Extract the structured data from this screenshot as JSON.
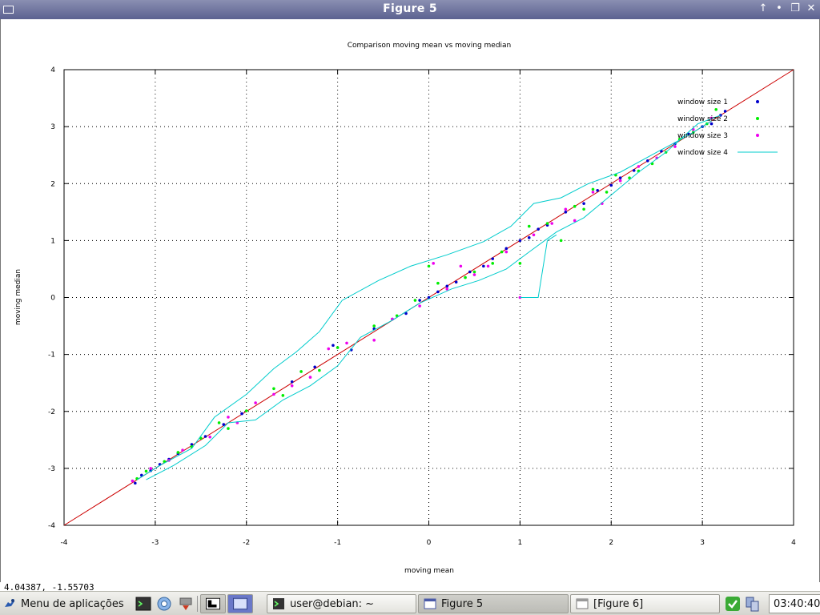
{
  "window": {
    "title": "Figure 5"
  },
  "status": {
    "coords": "4.04387, -1.55703"
  },
  "taskbar": {
    "menu_label": "Menu de aplicações",
    "tasks": [
      {
        "label": "user@debian: ~"
      },
      {
        "label": "Figure 5"
      },
      {
        "label": "[Figure 6]"
      }
    ],
    "clock": "03:40:40"
  },
  "colors": {
    "ws1": "#0000cc",
    "ws2": "#00ee00",
    "ws3": "#ee00ee",
    "ws4": "#00cccc",
    "identity": "#cc0000"
  },
  "chart_data": {
    "type": "scatter",
    "title": "Comparison moving mean vs moving median",
    "xlabel": "moving mean",
    "ylabel": "moving median",
    "xlim": [
      -4,
      4
    ],
    "ylim": [
      -4,
      4
    ],
    "xticks": [
      "-4",
      "-3",
      "-2",
      "-1",
      "0",
      "1",
      "2",
      "3",
      "4"
    ],
    "yticks": [
      "-4",
      "-3",
      "-2",
      "-1",
      "0",
      "1",
      "2",
      "3",
      "4"
    ],
    "grid": true,
    "legend_position": "top-right",
    "identity_line": {
      "from": [
        -4,
        -4
      ],
      "to": [
        4,
        4
      ]
    },
    "series": [
      {
        "name": "window size 1",
        "style": "points",
        "points": [
          [
            -3.22,
            -3.26
          ],
          [
            -3.15,
            -3.12
          ],
          [
            -3.05,
            -3.04
          ],
          [
            -2.95,
            -2.93
          ],
          [
            -2.85,
            -2.84
          ],
          [
            -2.75,
            -2.74
          ],
          [
            -2.6,
            -2.58
          ],
          [
            -2.45,
            -2.44
          ],
          [
            -2.25,
            -2.23
          ],
          [
            -2.05,
            -2.04
          ],
          [
            -1.5,
            -1.48
          ],
          [
            -1.25,
            -1.22
          ],
          [
            -1.05,
            -0.84
          ],
          [
            -0.85,
            -0.92
          ],
          [
            -0.6,
            -0.55
          ],
          [
            -0.4,
            -0.38
          ],
          [
            -0.25,
            -0.28
          ],
          [
            -0.1,
            -0.05
          ],
          [
            0.0,
            0.0
          ],
          [
            0.1,
            0.1
          ],
          [
            0.2,
            0.2
          ],
          [
            0.3,
            0.27
          ],
          [
            0.45,
            0.45
          ],
          [
            0.6,
            0.55
          ],
          [
            0.7,
            0.68
          ],
          [
            0.85,
            0.86
          ],
          [
            1.0,
            1.0
          ],
          [
            1.1,
            1.05
          ],
          [
            1.2,
            1.2
          ],
          [
            1.3,
            1.27
          ],
          [
            1.5,
            1.5
          ],
          [
            1.7,
            1.65
          ],
          [
            1.85,
            1.88
          ],
          [
            2.0,
            1.97
          ],
          [
            2.1,
            2.1
          ],
          [
            2.25,
            2.23
          ],
          [
            2.4,
            2.4
          ],
          [
            2.55,
            2.57
          ],
          [
            2.7,
            2.7
          ],
          [
            2.85,
            2.87
          ],
          [
            3.0,
            3.0
          ],
          [
            3.1,
            3.05
          ],
          [
            3.2,
            3.2
          ],
          [
            3.25,
            3.27
          ]
        ]
      },
      {
        "name": "window size 2",
        "style": "points",
        "points": [
          [
            -3.2,
            -3.18
          ],
          [
            -3.1,
            -3.05
          ],
          [
            -2.9,
            -2.88
          ],
          [
            -2.75,
            -2.72
          ],
          [
            -2.6,
            -2.62
          ],
          [
            -2.5,
            -2.47
          ],
          [
            -2.3,
            -2.2
          ],
          [
            -2.2,
            -2.3
          ],
          [
            -2.0,
            -1.99
          ],
          [
            -1.7,
            -1.6
          ],
          [
            -1.6,
            -1.72
          ],
          [
            -1.4,
            -1.3
          ],
          [
            -1.2,
            -1.28
          ],
          [
            -1.0,
            -0.88
          ],
          [
            -0.6,
            -0.5
          ],
          [
            -0.35,
            -0.32
          ],
          [
            -0.15,
            -0.05
          ],
          [
            0.0,
            0.55
          ],
          [
            0.1,
            0.25
          ],
          [
            0.4,
            0.35
          ],
          [
            0.5,
            0.45
          ],
          [
            0.7,
            0.6
          ],
          [
            0.8,
            0.8
          ],
          [
            1.0,
            0.6
          ],
          [
            1.1,
            1.25
          ],
          [
            1.3,
            1.3
          ],
          [
            1.45,
            1.0
          ],
          [
            1.6,
            1.6
          ],
          [
            1.7,
            1.55
          ],
          [
            1.8,
            1.9
          ],
          [
            1.95,
            1.85
          ],
          [
            2.05,
            2.15
          ],
          [
            2.2,
            2.1
          ],
          [
            2.3,
            2.22
          ],
          [
            2.45,
            2.35
          ],
          [
            2.6,
            2.55
          ],
          [
            2.75,
            2.78
          ],
          [
            2.9,
            2.9
          ],
          [
            3.05,
            3.05
          ],
          [
            3.15,
            3.3
          ]
        ]
      },
      {
        "name": "window size 3",
        "style": "points",
        "points": [
          [
            -3.25,
            -3.22
          ],
          [
            -3.05,
            -3.0
          ],
          [
            -2.85,
            -2.86
          ],
          [
            -2.7,
            -2.68
          ],
          [
            -2.4,
            -2.45
          ],
          [
            -2.2,
            -2.1
          ],
          [
            -2.1,
            -2.2
          ],
          [
            -1.9,
            -1.85
          ],
          [
            -1.7,
            -1.7
          ],
          [
            -1.5,
            -1.55
          ],
          [
            -1.3,
            -1.4
          ],
          [
            -1.1,
            -0.9
          ],
          [
            -0.9,
            -0.8
          ],
          [
            -0.6,
            -0.75
          ],
          [
            -0.4,
            -0.38
          ],
          [
            -0.1,
            -0.15
          ],
          [
            0.05,
            0.6
          ],
          [
            0.2,
            0.15
          ],
          [
            0.35,
            0.55
          ],
          [
            0.5,
            0.4
          ],
          [
            0.65,
            0.55
          ],
          [
            0.85,
            0.8
          ],
          [
            1.0,
            0.0
          ],
          [
            1.15,
            1.1
          ],
          [
            1.35,
            1.3
          ],
          [
            1.5,
            1.55
          ],
          [
            1.6,
            1.35
          ],
          [
            1.8,
            1.85
          ],
          [
            1.9,
            1.65
          ],
          [
            2.1,
            2.05
          ],
          [
            2.3,
            2.3
          ],
          [
            2.5,
            2.45
          ],
          [
            2.7,
            2.65
          ],
          [
            2.9,
            2.95
          ],
          [
            3.1,
            3.15
          ]
        ]
      },
      {
        "name": "window size 4",
        "style": "line",
        "paths": [
          [
            [
              -3.2,
              -3.2
            ],
            [
              -2.95,
              -2.95
            ],
            [
              -2.6,
              -2.65
            ],
            [
              -2.35,
              -2.1
            ],
            [
              -2.0,
              -1.7
            ],
            [
              -1.7,
              -1.25
            ],
            [
              -1.45,
              -0.95
            ],
            [
              -1.2,
              -0.6
            ],
            [
              -0.95,
              -0.05
            ],
            [
              -0.55,
              0.3
            ],
            [
              -0.2,
              0.55
            ],
            [
              0.2,
              0.75
            ],
            [
              0.6,
              0.98
            ],
            [
              0.9,
              1.25
            ],
            [
              1.15,
              1.65
            ],
            [
              1.45,
              1.75
            ],
            [
              1.75,
              2.0
            ],
            [
              2.1,
              2.2
            ],
            [
              2.5,
              2.55
            ],
            [
              2.85,
              2.85
            ],
            [
              3.1,
              3.1
            ]
          ],
          [
            [
              -3.1,
              -3.2
            ],
            [
              -2.8,
              -2.95
            ],
            [
              -2.45,
              -2.6
            ],
            [
              -2.2,
              -2.2
            ],
            [
              -1.9,
              -2.15
            ],
            [
              -1.6,
              -1.8
            ],
            [
              -1.3,
              -1.55
            ],
            [
              -1.0,
              -1.2
            ],
            [
              -0.75,
              -0.7
            ],
            [
              -0.4,
              -0.4
            ],
            [
              -0.1,
              -0.1
            ],
            [
              0.25,
              0.15
            ],
            [
              0.55,
              0.3
            ],
            [
              0.85,
              0.5
            ],
            [
              1.1,
              0.8
            ],
            [
              1.4,
              1.15
            ],
            [
              1.7,
              1.4
            ],
            [
              2.0,
              1.8
            ],
            [
              2.3,
              2.2
            ],
            [
              2.6,
              2.55
            ],
            [
              2.95,
              3.05
            ],
            [
              3.2,
              3.2
            ]
          ],
          [
            [
              1.0,
              0.0
            ],
            [
              1.2,
              0.0
            ],
            [
              1.3,
              1.0
            ],
            [
              1.4,
              1.1
            ]
          ]
        ]
      }
    ]
  }
}
